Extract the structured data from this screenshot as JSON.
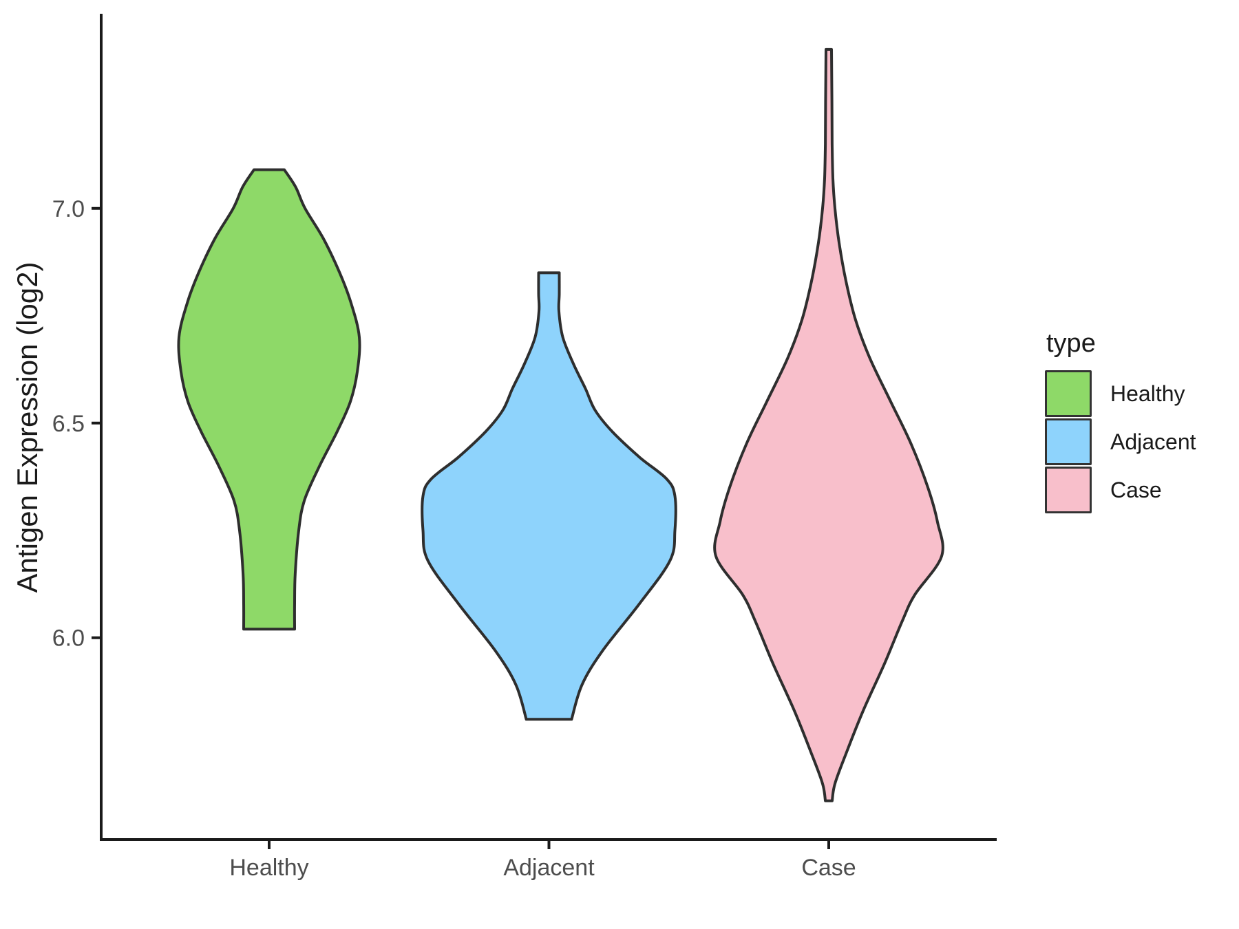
{
  "figure": {
    "background": "#FFFFFF"
  },
  "chart_data": {
    "type": "violin",
    "title": "",
    "xlabel": "",
    "ylabel": "Antigen Expression (log2)",
    "categories": [
      "Healthy",
      "Adjacent",
      "Case"
    ],
    "y_ticks": [
      "6.0",
      "6.5",
      "7.0"
    ],
    "y_tick_values": [
      6.0,
      6.5,
      7.0
    ],
    "ylim": [
      5.53,
      7.45
    ],
    "grid": "off",
    "legend": {
      "title": "type",
      "position": "right",
      "entries": [
        {
          "label": "Healthy",
          "fill": "#8ED968"
        },
        {
          "label": "Adjacent",
          "fill": "#8ED3FC"
        },
        {
          "label": "Case",
          "fill": "#F8BFCB"
        }
      ]
    },
    "style": {
      "outline_color": "#2E2E2E",
      "axis_color": "#1A1A1A",
      "tick_label_color": "#4D4D4D",
      "outline_width": 4
    },
    "series": [
      {
        "name": "Healthy",
        "fill": "#8ED968",
        "min": 6.02,
        "max": 7.09,
        "peak": 6.7,
        "profile": [
          [
            7.09,
            0.12
          ],
          [
            7.05,
            0.21
          ],
          [
            7.0,
            0.285
          ],
          [
            6.93,
            0.43
          ],
          [
            6.85,
            0.56
          ],
          [
            6.78,
            0.65
          ],
          [
            6.7,
            0.716
          ],
          [
            6.62,
            0.7
          ],
          [
            6.55,
            0.645
          ],
          [
            6.48,
            0.54
          ],
          [
            6.4,
            0.4
          ],
          [
            6.32,
            0.28
          ],
          [
            6.25,
            0.235
          ],
          [
            6.15,
            0.207
          ],
          [
            6.08,
            0.202
          ],
          [
            6.02,
            0.202
          ]
        ]
      },
      {
        "name": "Adjacent",
        "fill": "#8ED3FC",
        "min": 5.81,
        "max": 6.85,
        "peak": 6.29,
        "profile": [
          [
            6.85,
            0.082
          ],
          [
            6.8,
            0.082
          ],
          [
            6.76,
            0.079
          ],
          [
            6.7,
            0.11
          ],
          [
            6.64,
            0.191
          ],
          [
            6.58,
            0.29
          ],
          [
            6.53,
            0.366
          ],
          [
            6.48,
            0.503
          ],
          [
            6.42,
            0.721
          ],
          [
            6.37,
            0.934
          ],
          [
            6.33,
            1.0
          ],
          [
            6.25,
            1.0
          ],
          [
            6.18,
            0.962
          ],
          [
            6.08,
            0.721
          ],
          [
            5.97,
            0.426
          ],
          [
            5.89,
            0.262
          ],
          [
            5.81,
            0.18
          ]
        ]
      },
      {
        "name": "Case",
        "fill": "#F8BFCB",
        "min": 5.62,
        "max": 7.37,
        "peak": 6.19,
        "profile": [
          [
            7.37,
            0.022
          ],
          [
            7.25,
            0.025
          ],
          [
            7.15,
            0.027
          ],
          [
            7.07,
            0.033
          ],
          [
            7.0,
            0.049
          ],
          [
            6.92,
            0.082
          ],
          [
            6.83,
            0.137
          ],
          [
            6.74,
            0.213
          ],
          [
            6.65,
            0.328
          ],
          [
            6.55,
            0.492
          ],
          [
            6.45,
            0.656
          ],
          [
            6.35,
            0.787
          ],
          [
            6.27,
            0.863
          ],
          [
            6.19,
            0.896
          ],
          [
            6.1,
            0.683
          ],
          [
            6.04,
            0.585
          ],
          [
            5.94,
            0.443
          ],
          [
            5.83,
            0.273
          ],
          [
            5.73,
            0.137
          ],
          [
            5.66,
            0.049
          ],
          [
            5.62,
            0.027
          ]
        ]
      }
    ]
  }
}
